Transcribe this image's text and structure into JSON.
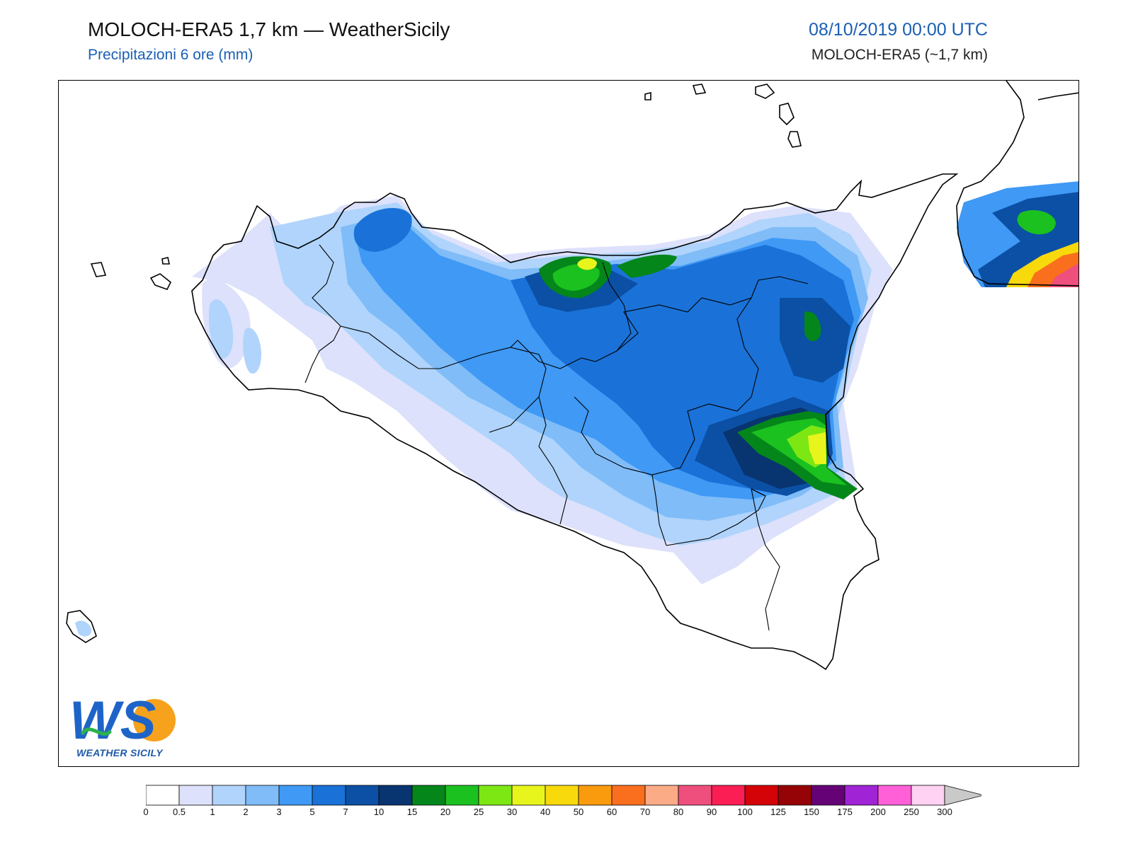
{
  "header": {
    "title": "MOLOCH-ERA5 1,7 km — WeatherSicily",
    "subtitle": "Precipitazioni 6 ore (mm)",
    "datetime": "08/10/2019 00:00 UTC",
    "model": "MOLOCH-ERA5 (~1,7 km)"
  },
  "logo": {
    "letters": "WS",
    "caption": "WEATHER SICILY"
  },
  "colorbar": {
    "labels": [
      "0",
      "0.5",
      "1",
      "2",
      "3",
      "5",
      "7",
      "10",
      "15",
      "20",
      "25",
      "30",
      "40",
      "50",
      "60",
      "70",
      "80",
      "90",
      "100",
      "125",
      "150",
      "175",
      "200",
      "250",
      "300"
    ],
    "colors": [
      "#ffffff",
      "#dde1fb",
      "#b0d4fb",
      "#7fbcf8",
      "#3f99f5",
      "#1a72d8",
      "#0b50a5",
      "#083470",
      "#04861b",
      "#1bc11f",
      "#7de714",
      "#e7f51c",
      "#f8d90c",
      "#f99b0d",
      "#fa6f1d",
      "#fbab86",
      "#ef4f7d",
      "#fa1e54",
      "#d40307",
      "#950307",
      "#650376",
      "#a023d6",
      "#ff60d8",
      "#ffd1f3"
    ],
    "extension_color": "#c9c9c9"
  },
  "legend_levels_mm": [
    0,
    0.5,
    1,
    2,
    3,
    5,
    7,
    10,
    15,
    20,
    25,
    30,
    40,
    50,
    60,
    70,
    80,
    90,
    100,
    125,
    150,
    175,
    200,
    250,
    300
  ]
}
